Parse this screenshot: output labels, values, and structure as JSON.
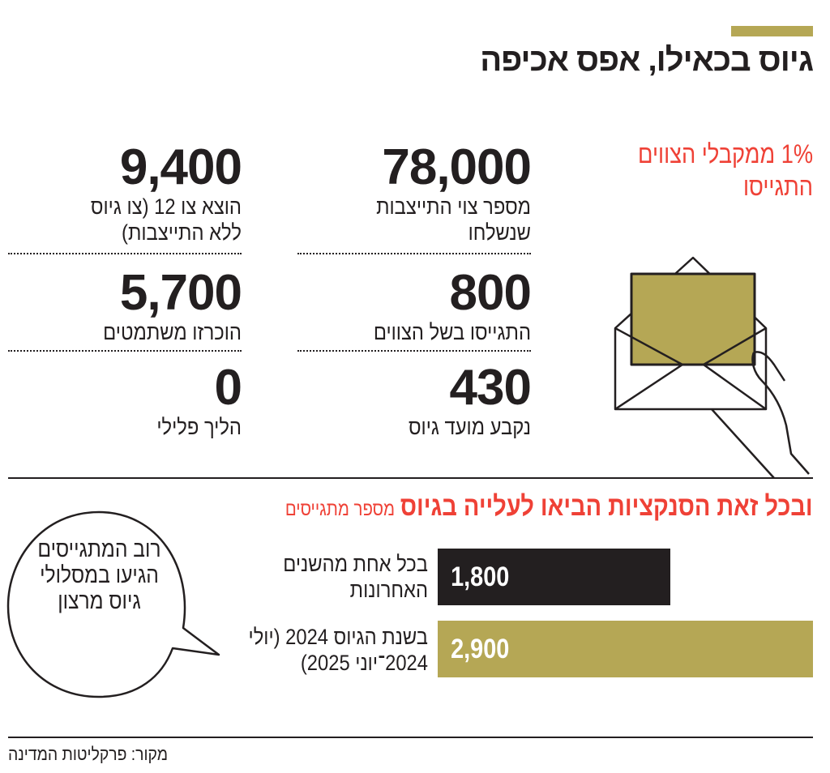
{
  "header": {
    "title": "גיוס בכאילו, אפס אכיפה",
    "accent_color": "#b5a755"
  },
  "highlight": {
    "text": "1% ממקבלי הצווים התגייסו",
    "color": "#ef4136"
  },
  "stats": [
    {
      "value": "78,000",
      "label": "מספר צוי התייצבות שנשלחו"
    },
    {
      "value": "9,400",
      "label": "הוצא צו 12 (צו גיוס ללא התייצבות)"
    },
    {
      "value": "800",
      "label": "התגייסו בשל הצווים"
    },
    {
      "value": "5,700",
      "label": "הוכרזו משתמטים"
    },
    {
      "value": "430",
      "label": "נקבע מועד גיוס"
    },
    {
      "value": "0",
      "label": "הליך פלילי"
    }
  ],
  "illustration": {
    "icon": "envelope-in-hand-icon",
    "fill_color": "#b5a755"
  },
  "chart_data": {
    "type": "bar",
    "orientation": "horizontal",
    "title": "ובכל זאת הסנקציות הביאו לעלייה בגיוס",
    "subtitle": "מספר מתגייסים",
    "categories": [
      "בכל אחת מהשנים האחרונות",
      "בשנת הגיוס 2024 (יולי 2024־יוני 2025)"
    ],
    "values": [
      1800,
      2900
    ],
    "value_labels": [
      "1,800",
      "2,900"
    ],
    "colors": [
      "#231f20",
      "#b5a755"
    ],
    "grid": false
  },
  "bubble": {
    "text": "רוב המתגייסים הגיעו במסלולי גיוס מרצון"
  },
  "footer": {
    "source": "מקור: פרקליטות המדינה"
  }
}
